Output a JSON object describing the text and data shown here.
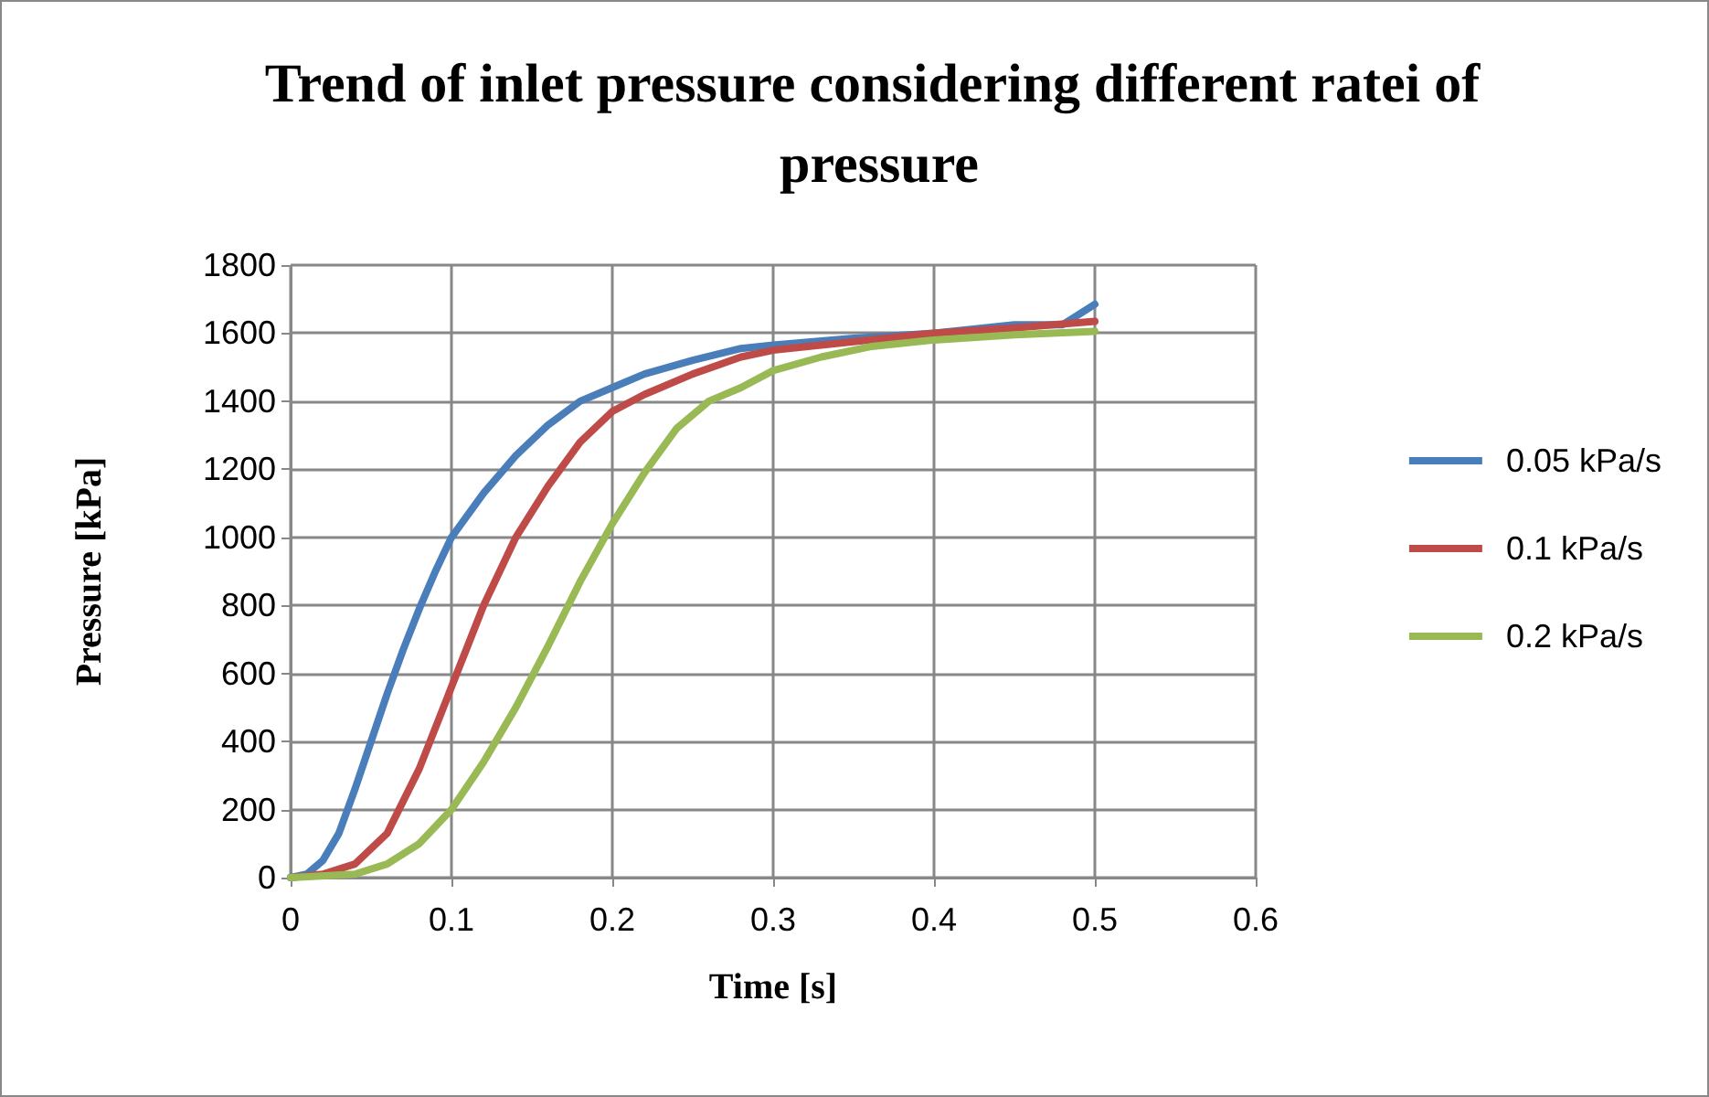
{
  "chart_data": {
    "type": "line",
    "title": "Trend of inlet pressure considering different ratei of pressure",
    "xlabel": "Time [s]",
    "ylabel": "Pressure [kPa]",
    "xlim": [
      0,
      0.6
    ],
    "xticks": [
      0,
      0.1,
      0.2,
      0.3,
      0.4,
      0.5,
      0.6
    ],
    "ylim": [
      0,
      1800
    ],
    "yticks": [
      0,
      200,
      400,
      600,
      800,
      1000,
      1200,
      1400,
      1600,
      1800
    ],
    "grid": true,
    "legend": "right",
    "marker": "none",
    "line_style": "solid",
    "series": [
      {
        "name": "0.05 kPa/s",
        "color": "#4a7ebb",
        "x": [
          0,
          0.01,
          0.02,
          0.03,
          0.04,
          0.05,
          0.06,
          0.07,
          0.08,
          0.09,
          0.1,
          0.12,
          0.14,
          0.16,
          0.18,
          0.2,
          0.22,
          0.25,
          0.28,
          0.3,
          0.35,
          0.4,
          0.45,
          0.48,
          0.5
        ],
        "values": [
          0,
          10,
          50,
          130,
          260,
          400,
          540,
          670,
          790,
          900,
          1000,
          1130,
          1240,
          1330,
          1400,
          1440,
          1480,
          1520,
          1555,
          1565,
          1585,
          1600,
          1625,
          1625,
          1685
        ]
      },
      {
        "name": "0.1 kPa/s",
        "color": "#be4b48",
        "x": [
          0,
          0.02,
          0.04,
          0.06,
          0.08,
          0.1,
          0.12,
          0.14,
          0.16,
          0.18,
          0.2,
          0.22,
          0.25,
          0.28,
          0.3,
          0.35,
          0.4,
          0.45,
          0.5
        ],
        "values": [
          0,
          10,
          40,
          130,
          320,
          560,
          800,
          1000,
          1150,
          1280,
          1370,
          1420,
          1480,
          1530,
          1550,
          1575,
          1600,
          1615,
          1635
        ]
      },
      {
        "name": "0.2 kPa/s",
        "color": "#98b954",
        "x": [
          0,
          0.04,
          0.06,
          0.08,
          0.1,
          0.12,
          0.14,
          0.16,
          0.18,
          0.2,
          0.22,
          0.24,
          0.26,
          0.28,
          0.3,
          0.33,
          0.36,
          0.4,
          0.45,
          0.5
        ],
        "values": [
          0,
          10,
          40,
          100,
          200,
          340,
          500,
          680,
          870,
          1040,
          1190,
          1320,
          1400,
          1440,
          1490,
          1530,
          1560,
          1580,
          1595,
          1605
        ]
      }
    ]
  }
}
